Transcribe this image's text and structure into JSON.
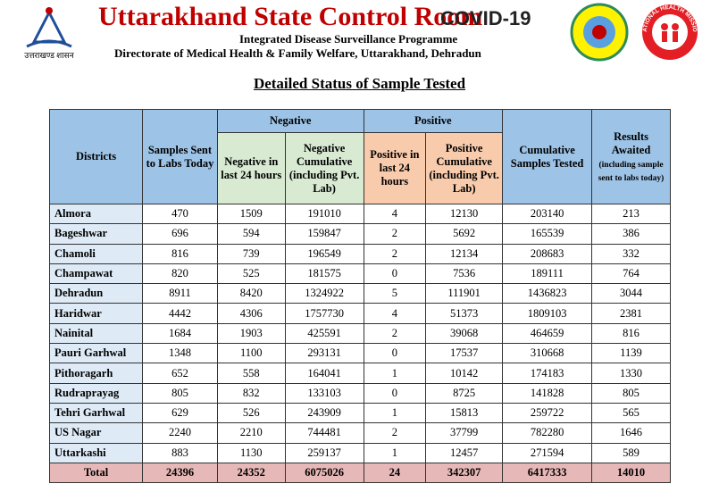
{
  "header": {
    "title": "Uttarakhand State Control Room",
    "covid": "COVID-19",
    "subtitle1": "Integrated Disease Surveillance Programme",
    "subtitle2": "Directorate of Medical Health & Family Welfare, Uttarakhand, Dehradun",
    "left_logo_caption": "उत्तराखण्ड शासन",
    "right_logo_text": "NATIONAL HEALTH MISSION"
  },
  "heading": "Detailed Status of Sample Tested",
  "table": {
    "columns": {
      "districts": "Districts",
      "sent": "Samples Sent to Labs Today",
      "negative": "Negative",
      "negative_24": "Negative in last 24 hours",
      "negative_cum": "Negative Cumulative (including Pvt. Lab)",
      "positive": "Positive",
      "positive_24": "Positive in last 24 hours",
      "positive_cum": "Positive Cumulative (including Pvt. Lab)",
      "cumulative": "Cumulative Samples Tested",
      "awaited": "Results Awaited",
      "awaited_note": "(including sample sent to labs today)"
    },
    "rows": [
      [
        "Almora",
        470,
        1509,
        191010,
        4,
        12130,
        203140,
        213
      ],
      [
        "Bageshwar",
        696,
        594,
        159847,
        2,
        5692,
        165539,
        386
      ],
      [
        "Chamoli",
        816,
        739,
        196549,
        2,
        12134,
        208683,
        332
      ],
      [
        "Champawat",
        820,
        525,
        181575,
        0,
        7536,
        189111,
        764
      ],
      [
        "Dehradun",
        8911,
        8420,
        1324922,
        5,
        111901,
        1436823,
        3044
      ],
      [
        "Haridwar",
        4442,
        4306,
        1757730,
        4,
        51373,
        1809103,
        2381
      ],
      [
        "Nainital",
        1684,
        1903,
        425591,
        2,
        39068,
        464659,
        816
      ],
      [
        "Pauri Garhwal",
        1348,
        1100,
        293131,
        0,
        17537,
        310668,
        1139
      ],
      [
        "Pithoragarh",
        652,
        558,
        164041,
        1,
        10142,
        174183,
        1330
      ],
      [
        "Rudraprayag",
        805,
        832,
        133103,
        0,
        8725,
        141828,
        805
      ],
      [
        "Tehri Garhwal",
        629,
        526,
        243909,
        1,
        15813,
        259722,
        565
      ],
      [
        "US Nagar",
        2240,
        2210,
        744481,
        2,
        37799,
        782280,
        1646
      ],
      [
        "Uttarkashi",
        883,
        1130,
        259137,
        1,
        12457,
        271594,
        589
      ]
    ],
    "total": [
      "Total",
      24396,
      24352,
      6075026,
      24,
      342307,
      6417333,
      14010
    ]
  }
}
